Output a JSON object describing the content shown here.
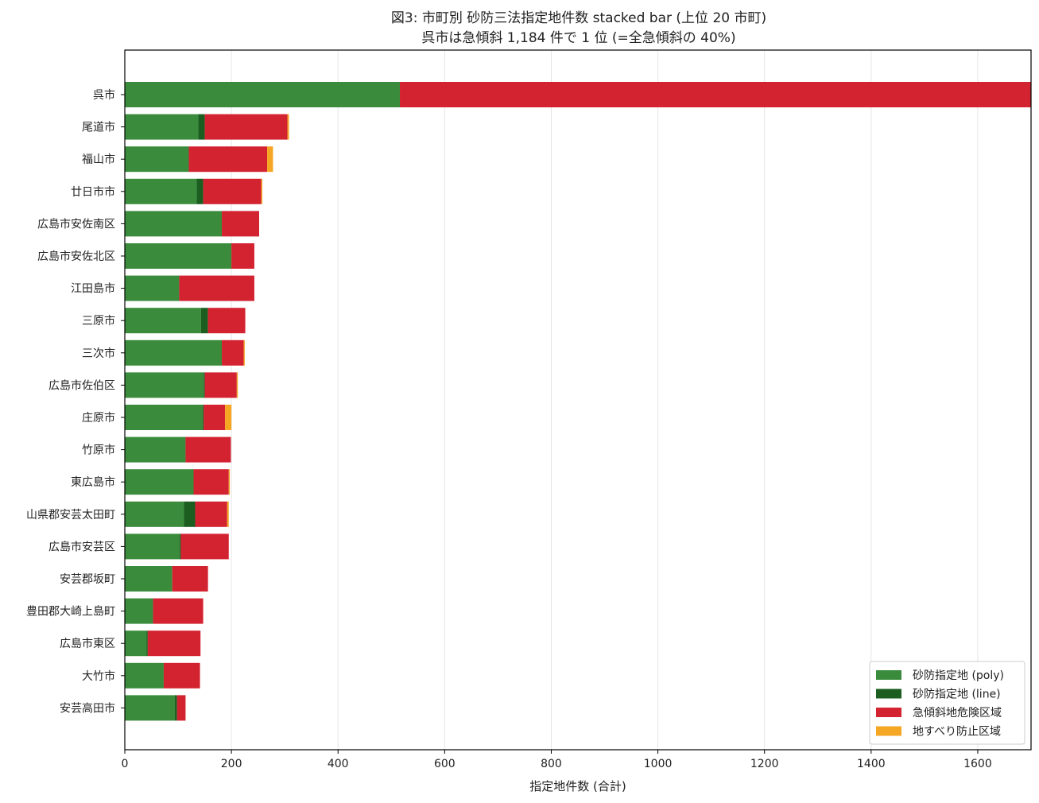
{
  "chart_data": {
    "type": "bar",
    "orientation": "horizontal",
    "stacked": true,
    "title": "図3: 市町別 砂防三法指定地件数 stacked bar (上位 20 市町)",
    "subtitle": "呉市は急傾斜 1,184 件で 1 位 (=全急傾斜の 40%)",
    "xlabel": "指定地件数 (合計)",
    "ylabel": "",
    "xlim": [
      0,
      1700
    ],
    "xticks": [
      0,
      200,
      400,
      600,
      800,
      1000,
      1200,
      1400,
      1600
    ],
    "grid": "x",
    "legend_position": "bottom-right",
    "categories": [
      "呉市",
      "尾道市",
      "福山市",
      "廿日市市",
      "広島市安佐南区",
      "広島市安佐北区",
      "江田島市",
      "三原市",
      "三次市",
      "広島市佐伯区",
      "庄原市",
      "竹原市",
      "東広島市",
      "山県郡安芸太田町",
      "広島市安芸区",
      "安芸郡坂町",
      "豊田郡大崎上島町",
      "広島市東区",
      "大竹市",
      "安芸高田市"
    ],
    "series": [
      {
        "name": "砂防指定地 (poly)",
        "color": "#3a8c3c",
        "values": [
          516,
          138,
          120,
          135,
          182,
          200,
          102,
          143,
          182,
          148,
          146,
          114,
          129,
          111,
          103,
          89,
          53,
          41,
          73,
          94
        ]
      },
      {
        "name": "砂防指定地 (line)",
        "color": "#1b5e20",
        "values": [
          0,
          12,
          0,
          12,
          0,
          0,
          0,
          13,
          0,
          2,
          2,
          0,
          0,
          21,
          2,
          0,
          0,
          2,
          0,
          4
        ]
      },
      {
        "name": "急傾斜地危険区域",
        "color": "#d32230",
        "values": [
          1184,
          155,
          147,
          109,
          70,
          43,
          141,
          70,
          41,
          60,
          40,
          85,
          66,
          60,
          90,
          67,
          94,
          99,
          68,
          16
        ]
      },
      {
        "name": "地すべり防止区域",
        "color": "#f5a623",
        "values": [
          0,
          3,
          11,
          2,
          0,
          0,
          0,
          0,
          2,
          2,
          12,
          0,
          2,
          3,
          0,
          0,
          0,
          0,
          0,
          0
        ]
      }
    ]
  }
}
